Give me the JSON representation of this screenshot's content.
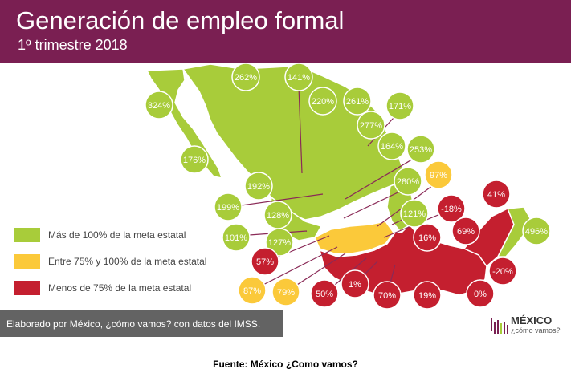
{
  "header": {
    "title": "Generación de empleo formal",
    "subtitle": "1º trimestre 2018"
  },
  "colors": {
    "header_bg": "#7a1f52",
    "green": "#a8cc3a",
    "yellow": "#fbc93a",
    "red": "#c41f2f",
    "credit_bg": "#636363"
  },
  "legend": [
    {
      "label": "Más de 100% de la meta estatal",
      "color": "#a8cc3a"
    },
    {
      "label": "Entre 75% y 100% de la meta estatal",
      "color": "#fbc93a"
    },
    {
      "label": "Menos de 75% de la meta estatal",
      "color": "#c41f2f"
    }
  ],
  "state_values": [
    {
      "value": "324%",
      "category": "green"
    },
    {
      "value": "262%",
      "category": "green"
    },
    {
      "value": "141%",
      "category": "green"
    },
    {
      "value": "220%",
      "category": "green"
    },
    {
      "value": "261%",
      "category": "green"
    },
    {
      "value": "171%",
      "category": "green"
    },
    {
      "value": "277%",
      "category": "green"
    },
    {
      "value": "176%",
      "category": "green"
    },
    {
      "value": "164%",
      "category": "green"
    },
    {
      "value": "253%",
      "category": "green"
    },
    {
      "value": "192%",
      "category": "green"
    },
    {
      "value": "199%",
      "category": "green"
    },
    {
      "value": "128%",
      "category": "green"
    },
    {
      "value": "280%",
      "category": "green"
    },
    {
      "value": "97%",
      "category": "yellow"
    },
    {
      "value": "121%",
      "category": "green"
    },
    {
      "value": "41%",
      "category": "red"
    },
    {
      "value": "-18%",
      "category": "red"
    },
    {
      "value": "101%",
      "category": "green"
    },
    {
      "value": "127%",
      "category": "green"
    },
    {
      "value": "16%",
      "category": "red"
    },
    {
      "value": "69%",
      "category": "red"
    },
    {
      "value": "496%",
      "category": "green"
    },
    {
      "value": "57%",
      "category": "red"
    },
    {
      "value": "-20%",
      "category": "red"
    },
    {
      "value": "87%",
      "category": "yellow"
    },
    {
      "value": "79%",
      "category": "yellow"
    },
    {
      "value": "50%",
      "category": "red"
    },
    {
      "value": "1%",
      "category": "red"
    },
    {
      "value": "70%",
      "category": "red"
    },
    {
      "value": "19%",
      "category": "red"
    },
    {
      "value": "0%",
      "category": "red"
    }
  ],
  "credit": "Elaborado por México, ¿cómo vamos? con datos del IMSS.",
  "logo": {
    "name": "MÉXICO",
    "tagline": "¿cómo vamos?"
  },
  "source": "Fuente: México ¿Como vamos?"
}
